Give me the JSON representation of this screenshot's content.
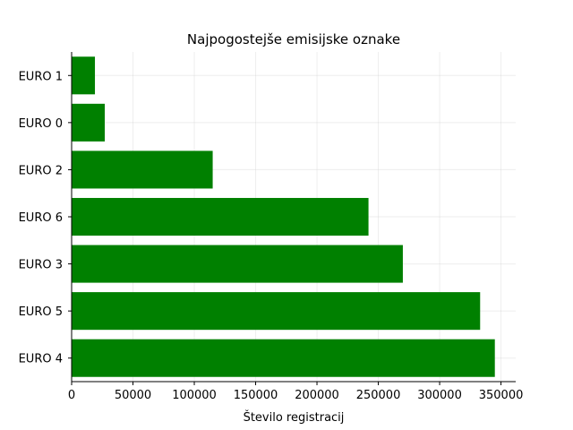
{
  "chart_data": {
    "type": "bar",
    "orientation": "horizontal",
    "title": "Najpogostejše emisijske oznake",
    "xlabel": "Število registracij",
    "ylabel": "",
    "categories": [
      "EURO 4",
      "EURO 5",
      "EURO 3",
      "EURO 6",
      "EURO 2",
      "EURO 0",
      "EURO 1"
    ],
    "values": [
      345000,
      333000,
      270000,
      242000,
      115000,
      27000,
      19000
    ],
    "xlim": [
      0,
      362000
    ],
    "xticks": [
      0,
      50000,
      100000,
      150000,
      200000,
      250000,
      300000,
      350000
    ],
    "xtick_labels": [
      "0",
      "50000",
      "100000",
      "150000",
      "200000",
      "250000",
      "300000",
      "350000"
    ],
    "grid": true,
    "bar_color": "#008000"
  }
}
